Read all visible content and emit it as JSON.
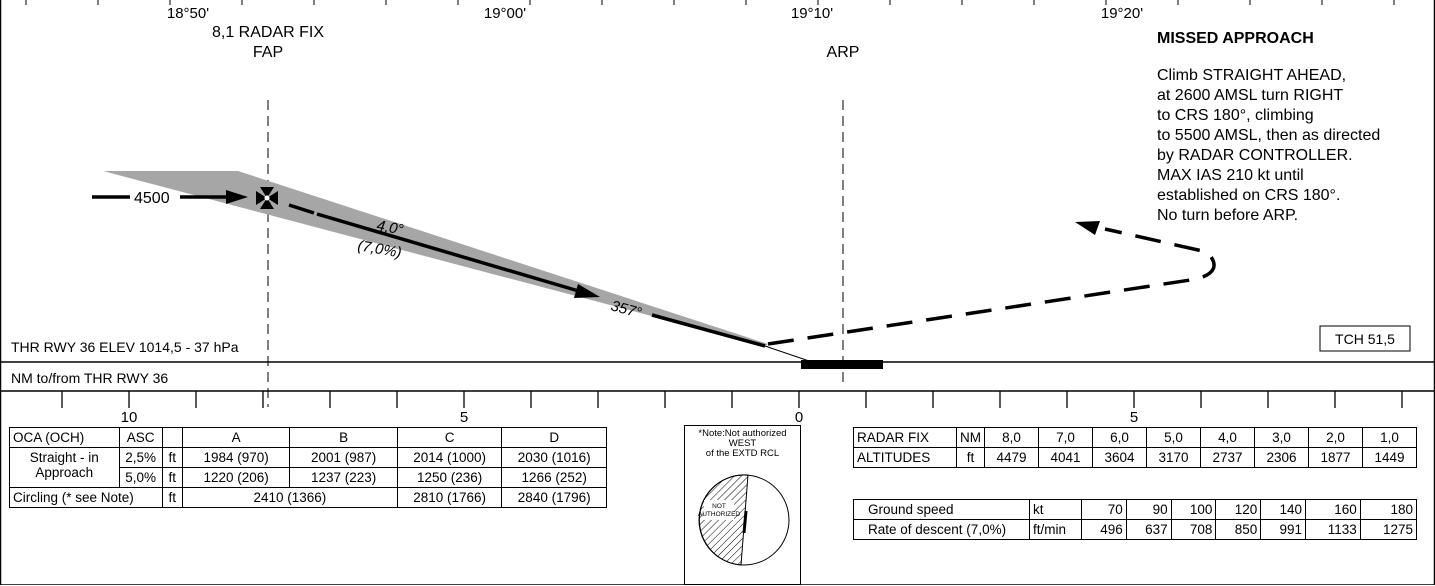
{
  "top_axis": {
    "ticks": [
      "18°50'",
      "19°00'",
      "19°10'",
      "19°20'"
    ]
  },
  "fix": {
    "line1": "8,1 RADAR FIX",
    "line2": "FAP"
  },
  "arp_label": "ARP",
  "missed_approach": {
    "title": "MISSED APPROACH",
    "lines": [
      "Climb STRAIGHT AHEAD,",
      "at 2600 AMSL turn RIGHT",
      "to CRS 180°, climbing",
      "to 5500 AMSL, then as directed",
      "by RADAR CONTROLLER.",
      "MAX IAS 210 kt until",
      "established on CRS 180°.",
      "No turn before ARP."
    ]
  },
  "profile": {
    "altitude": "4500",
    "glide_angle": "4,0°",
    "glide_gradient": "(7,0%)",
    "course": "357°"
  },
  "threshold_label": "THR RWY 36 ELEV 1014,5 - 37 hPa",
  "tch_label": "TCH 51,5",
  "distance_label": "NM to/from THR RWY 36",
  "distance_scale": {
    "left": [
      "10",
      "5",
      "0"
    ],
    "right": [
      "5"
    ]
  },
  "oca_table": {
    "header": [
      "OCA (OCH)",
      "ASC",
      "",
      "A",
      "B",
      "C",
      "D"
    ],
    "straight_in_label": "Straight - in",
    "approach_label": "Approach",
    "rows": [
      {
        "asc": "2,5%",
        "unit": "ft",
        "values": [
          "1984 (970)",
          "2001 (987)",
          "2014 (1000)",
          "2030 (1016)"
        ]
      },
      {
        "asc": "5,0%",
        "unit": "ft",
        "values": [
          "1220 (206)",
          "1237 (223)",
          "1250 (236)",
          "1266 (252)"
        ]
      }
    ],
    "circling": {
      "label": "Circling (* see Note)",
      "unit": "ft",
      "ab": "2410 (1366)",
      "c": "2810 (1766)",
      "d": "2840 (1796)"
    }
  },
  "circling_note": {
    "line1": "*Note:Not authorized",
    "line2": "WEST",
    "line3": "of the EXTD RCL",
    "sector1": "NOT",
    "sector2": "AUTHORIZED"
  },
  "radar_fix_table": {
    "row1_label": "RADAR FIX",
    "row1_unit": "NM",
    "distances": [
      "8,0",
      "7,0",
      "6,0",
      "5,0",
      "4,0",
      "3,0",
      "2,0",
      "1,0"
    ],
    "row2_label": "ALTITUDES",
    "row2_unit": "ft",
    "altitudes": [
      "4479",
      "4041",
      "3604",
      "3170",
      "2737",
      "2306",
      "1877",
      "1449"
    ]
  },
  "groundspeed_table": {
    "row1_label": "Ground speed",
    "row1_unit": "kt",
    "speeds": [
      "70",
      "90",
      "100",
      "120",
      "140",
      "160",
      "180"
    ],
    "row2_label": "Rate of descent (7,0%)",
    "row2_unit": "ft/min",
    "rates": [
      "496",
      "637",
      "708",
      "850",
      "991",
      "1133",
      "1275"
    ]
  }
}
